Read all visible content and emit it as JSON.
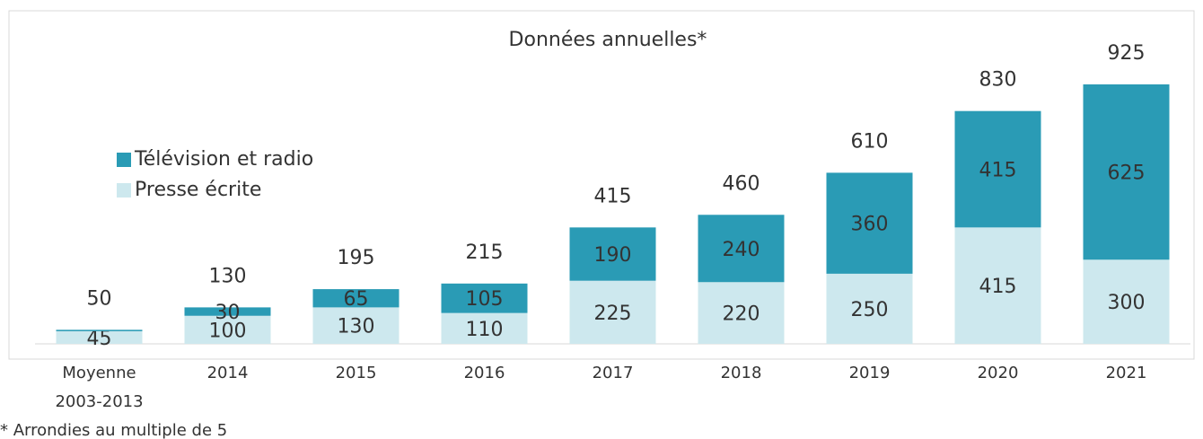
{
  "chart_data": {
    "type": "stacked_bar",
    "title": "Données annuelles*",
    "categories": [
      "Moyenne 2003-2013",
      "2014",
      "2015",
      "2016",
      "2017",
      "2018",
      "2019",
      "2020",
      "2021"
    ],
    "series": [
      {
        "name": "Presse écrite",
        "color": "#cde8ee",
        "values": [
          45,
          100,
          130,
          110,
          225,
          220,
          250,
          415,
          300
        ]
      },
      {
        "name": "Télévision et radio",
        "color": "#2a9bb5",
        "values": [
          5,
          30,
          65,
          105,
          190,
          240,
          360,
          415,
          625
        ]
      }
    ],
    "total_labels": [
      "50",
      "130",
      "195",
      "215",
      "415",
      "460",
      "610",
      "830",
      "925"
    ],
    "ylim": [
      0,
      925
    ],
    "footnote": "* Arrondies au multiple de 5"
  }
}
